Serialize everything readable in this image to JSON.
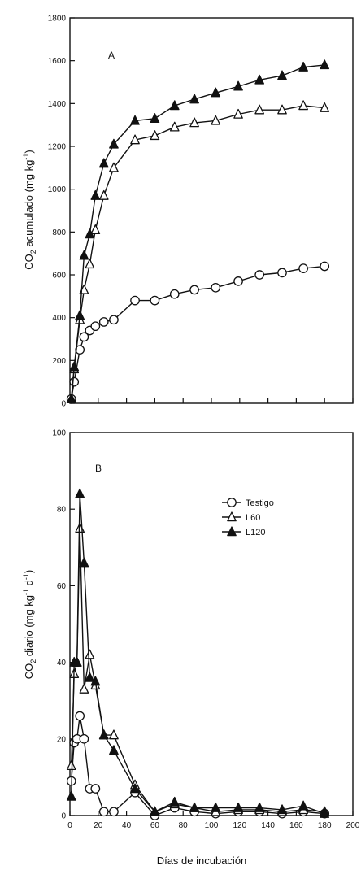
{
  "chart_data": [
    {
      "type": "line",
      "panel_label": "A",
      "ylabel": "CO2 acumulado (mg kg-1)",
      "ylabel_main": "CO",
      "ylabel_sub": "2",
      "ylabel_rest": " acumulado (mg kg",
      "ylabel_sup": "-1",
      "ylabel_end": ")",
      "xlim": [
        0,
        200
      ],
      "ylim": [
        0,
        1800
      ],
      "xticks": [
        "0",
        "20",
        "40",
        "60",
        "80",
        "100",
        "120",
        "140",
        "160",
        "180",
        "200"
      ],
      "yticks": [
        "0",
        "200",
        "400",
        "600",
        "800",
        "1000",
        "1200",
        "1400",
        "1600",
        "1800"
      ],
      "show_x_tick_labels": false,
      "grid": false,
      "series": [
        {
          "marker": "open-circle",
          "x": [
            1,
            3,
            7,
            10,
            14,
            18,
            24,
            31,
            46,
            60,
            74,
            88,
            103,
            119,
            134,
            150,
            165,
            180
          ],
          "y": [
            20,
            100,
            250,
            310,
            340,
            360,
            380,
            390,
            480,
            480,
            510,
            530,
            540,
            570,
            600,
            610,
            630,
            640
          ]
        },
        {
          "marker": "open-triangle",
          "x": [
            1,
            3,
            7,
            10,
            14,
            18,
            24,
            31,
            46,
            60,
            74,
            88,
            103,
            119,
            134,
            150,
            165,
            180
          ],
          "y": [
            20,
            160,
            390,
            530,
            650,
            810,
            970,
            1100,
            1230,
            1250,
            1290,
            1310,
            1320,
            1350,
            1370,
            1370,
            1390,
            1380
          ]
        },
        {
          "marker": "filled-triangle",
          "x": [
            1,
            3,
            7,
            10,
            14,
            18,
            24,
            31,
            46,
            60,
            74,
            88,
            103,
            119,
            134,
            150,
            165,
            180
          ],
          "y": [
            20,
            170,
            410,
            690,
            790,
            970,
            1120,
            1210,
            1320,
            1330,
            1390,
            1420,
            1450,
            1480,
            1510,
            1530,
            1570,
            1580
          ]
        }
      ]
    },
    {
      "type": "line",
      "panel_label": "B",
      "xlabel": "Días de incubación",
      "ylabel": "CO2 diario (mg kg-1 d-1)",
      "ylabel_main": "CO",
      "ylabel_sub": "2",
      "ylabel_rest": " diario (mg kg",
      "ylabel_sup": "-1",
      "ylabel_mid": " d",
      "ylabel_sup2": "-1",
      "ylabel_end": ")",
      "xlim": [
        0,
        200
      ],
      "ylim": [
        0,
        100
      ],
      "xticks": [
        "0",
        "20",
        "40",
        "60",
        "80",
        "100",
        "120",
        "140",
        "160",
        "180",
        "200"
      ],
      "yticks": [
        "0",
        "20",
        "40",
        "60",
        "80",
        "100"
      ],
      "show_x_tick_labels": true,
      "grid": false,
      "legend_position": "top-right",
      "series": [
        {
          "name": "Testigo",
          "marker": "open-circle",
          "x": [
            1,
            3,
            5,
            7,
            10,
            14,
            18,
            24,
            31,
            46,
            60,
            74,
            88,
            103,
            119,
            134,
            150,
            165,
            180
          ],
          "y": [
            9,
            19,
            20,
            26,
            20,
            7,
            7,
            1,
            1,
            6,
            0,
            2,
            1,
            0.5,
            1,
            1,
            0.5,
            1,
            0.5
          ]
        },
        {
          "name": "L60",
          "marker": "open-triangle",
          "x": [
            1,
            3,
            5,
            7,
            10,
            14,
            18,
            24,
            31,
            46,
            60,
            74,
            88,
            103,
            119,
            134,
            150,
            165,
            180
          ],
          "y": [
            13,
            37,
            40,
            75,
            33,
            42,
            34,
            21,
            21,
            8,
            1,
            3,
            2,
            1,
            1.5,
            1.5,
            1,
            1.5,
            1
          ]
        },
        {
          "name": "L120",
          "marker": "filled-triangle",
          "x": [
            1,
            3,
            5,
            7,
            10,
            14,
            18,
            24,
            31,
            46,
            60,
            74,
            88,
            103,
            119,
            134,
            150,
            165,
            180
          ],
          "y": [
            5,
            40,
            40,
            84,
            66,
            36,
            35,
            21,
            17,
            7,
            1,
            3.5,
            2,
            2,
            2,
            2,
            1.5,
            2.5,
            0.5
          ]
        }
      ]
    }
  ]
}
